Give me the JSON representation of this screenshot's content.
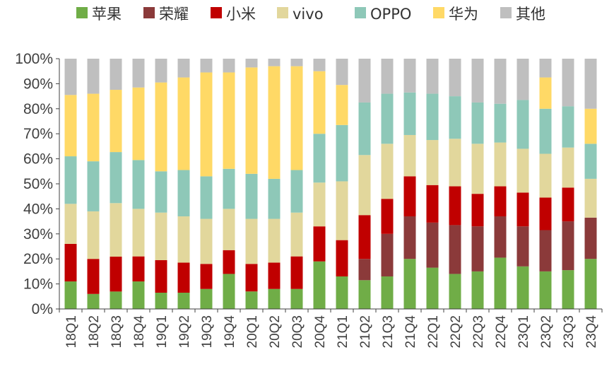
{
  "chart_data": {
    "type": "bar",
    "stacked": true,
    "percent_stacked": true,
    "title": "",
    "xlabel": "",
    "ylabel": "",
    "ylim": [
      0,
      100
    ],
    "y_ticks": [
      "0%",
      "10%",
      "20%",
      "30%",
      "40%",
      "50%",
      "60%",
      "70%",
      "80%",
      "90%",
      "100%"
    ],
    "grid": false,
    "legend_position": "top",
    "categories": [
      "18Q1",
      "18Q2",
      "18Q3",
      "18Q4",
      "19Q1",
      "19Q2",
      "19Q3",
      "19Q4",
      "20Q1",
      "20Q2",
      "20Q3",
      "20Q4",
      "21Q1",
      "21Q2",
      "21Q3",
      "21Q4",
      "22Q1",
      "22Q2",
      "22Q3",
      "22Q4",
      "23Q1",
      "23Q2",
      "23Q3",
      "23Q4"
    ],
    "series": [
      {
        "name": "苹果",
        "color": "#70ad47",
        "values": [
          11,
          6,
          7,
          11,
          6.5,
          6.5,
          8,
          14,
          7,
          8,
          8,
          19,
          13,
          11.5,
          13,
          20,
          16.5,
          14,
          15,
          20.5,
          17,
          15,
          15.5,
          20
        ]
      },
      {
        "name": "荣耀",
        "color": "#8b3a3a",
        "values": [
          0,
          0,
          0,
          0,
          0,
          0,
          0,
          0,
          0,
          0,
          0,
          0,
          0,
          8.5,
          17,
          17,
          18,
          19.5,
          18,
          16.5,
          16,
          16.5,
          19.5,
          16.5
        ]
      },
      {
        "name": "小米",
        "color": "#c00000",
        "values": [
          15,
          14,
          14,
          10,
          13,
          12,
          10,
          9.5,
          11,
          10.5,
          13,
          14,
          14.5,
          17.5,
          14,
          16,
          15,
          15.5,
          13,
          12,
          13.5,
          13,
          13.5,
          0
        ]
      },
      {
        "name": "vivo",
        "color": "#e2d79c",
        "values": [
          16,
          19,
          21.5,
          19,
          19,
          18.5,
          18,
          16.5,
          18,
          17.5,
          17.5,
          17.5,
          23.5,
          24,
          22,
          16.5,
          18,
          19,
          20,
          17.5,
          17.5,
          17.5,
          16,
          15.5
        ]
      },
      {
        "name": "OPPO",
        "color": "#8ec8b8",
        "values": [
          19,
          20,
          20.5,
          19.5,
          16.5,
          18.5,
          17,
          16,
          18,
          16,
          17,
          19.5,
          22.5,
          21,
          20,
          17,
          18.5,
          17,
          16.5,
          15.5,
          19.5,
          18,
          16.5,
          14
        ]
      },
      {
        "name": "华为",
        "color": "#ffd966",
        "values": [
          24.5,
          27,
          25,
          29,
          35.5,
          37,
          41.5,
          38.5,
          42.5,
          45,
          41.5,
          25,
          16,
          0,
          0,
          0,
          0,
          0,
          0,
          0,
          0,
          12.5,
          0,
          14
        ]
      },
      {
        "name": "其他",
        "color": "#bfbfbf",
        "values": [
          14.5,
          14,
          12.5,
          11.5,
          9.5,
          7.5,
          5.5,
          5.5,
          3.5,
          3,
          3,
          5,
          10.5,
          17.5,
          14,
          13.5,
          14,
          15,
          17.5,
          18,
          16.5,
          7.5,
          19,
          20
        ]
      }
    ]
  }
}
